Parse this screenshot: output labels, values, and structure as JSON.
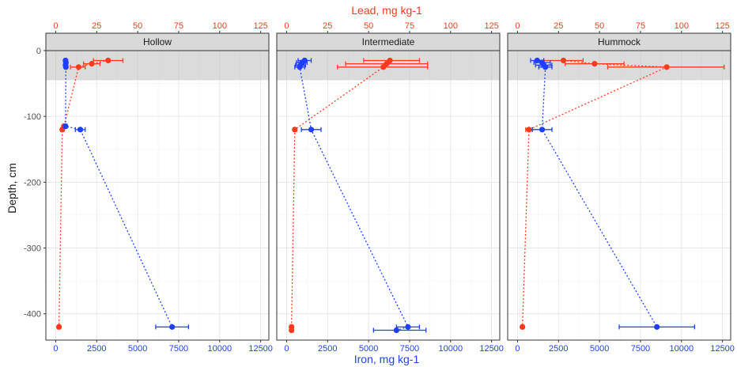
{
  "chart_data": {
    "type": "scatter",
    "y_axis": {
      "label": "Depth, cm",
      "lim": [
        -440,
        0
      ],
      "ticks": [
        0,
        -100,
        -200,
        -300,
        -400
      ],
      "tick_labels": [
        "0",
        "-100",
        "-200",
        "-300",
        "-400"
      ]
    },
    "x_axis_bottom": {
      "label": "Iron, mg kg-1",
      "lim": [
        -600,
        13000
      ],
      "ticks": [
        0,
        2500,
        5000,
        7500,
        10000,
        12500
      ],
      "tick_labels": [
        "0",
        "2500",
        "5000",
        "7500",
        "10000",
        "12500"
      ]
    },
    "x_axis_top": {
      "label": "Lead, mg kg-1",
      "lim": [
        -6,
        130
      ],
      "ticks": [
        0,
        25,
        50,
        75,
        100,
        125
      ],
      "tick_labels": [
        "0",
        "25",
        "50",
        "75",
        "100",
        "125"
      ]
    },
    "shaded_band": {
      "from": 0,
      "to": -45
    },
    "grid": true,
    "colors": {
      "iron": "#1f3fff",
      "lead": "#ff3a1a"
    },
    "panels": [
      {
        "title": "Hollow",
        "iron": [
          {
            "depth": -15,
            "mean": 600,
            "err_low": 550,
            "err_high": 650
          },
          {
            "depth": -18,
            "mean": 620,
            "err_low": 570,
            "err_high": 670
          },
          {
            "depth": -22,
            "mean": 600,
            "err_low": 550,
            "err_high": 650
          },
          {
            "depth": -25,
            "mean": 620,
            "err_low": 570,
            "err_high": 670
          },
          {
            "depth": -115,
            "mean": 600,
            "err_low": 500,
            "err_high": 700
          },
          {
            "depth": -120,
            "mean": 1500,
            "err_low": 1200,
            "err_high": 1800
          },
          {
            "depth": -420,
            "mean": 7100,
            "err_low": 6100,
            "err_high": 8100
          }
        ],
        "lead": [
          {
            "depth": -15,
            "mean": 32,
            "err_low": 23,
            "err_high": 41
          },
          {
            "depth": -20,
            "mean": 22,
            "err_low": 17,
            "err_high": 27
          },
          {
            "depth": -25,
            "mean": 14,
            "err_low": 9,
            "err_high": 18
          },
          {
            "depth": -115,
            "mean": 5,
            "err_low": 4,
            "err_high": 6
          },
          {
            "depth": -120,
            "mean": 4,
            "err_low": 3,
            "err_high": 5
          },
          {
            "depth": -420,
            "mean": 2,
            "err_low": 1,
            "err_high": 3
          }
        ]
      },
      {
        "title": "Intermediate",
        "iron": [
          {
            "depth": -15,
            "mean": 1100,
            "err_low": 700,
            "err_high": 1500
          },
          {
            "depth": -18,
            "mean": 950,
            "err_low": 600,
            "err_high": 1250
          },
          {
            "depth": -22,
            "mean": 850,
            "err_low": 550,
            "err_high": 1150
          },
          {
            "depth": -25,
            "mean": 800,
            "err_low": 500,
            "err_high": 1100
          },
          {
            "depth": -120,
            "mean": 1500,
            "err_low": 900,
            "err_high": 2100
          },
          {
            "depth": -420,
            "mean": 7400,
            "err_low": 6700,
            "err_high": 8100
          },
          {
            "depth": -425,
            "mean": 6700,
            "err_low": 5300,
            "err_high": 8500
          }
        ],
        "lead": [
          {
            "depth": -15,
            "mean": 63,
            "err_low": 47,
            "err_high": 81
          },
          {
            "depth": -20,
            "mean": 61,
            "err_low": 36,
            "err_high": 86
          },
          {
            "depth": -25,
            "mean": 59,
            "err_low": 31,
            "err_high": 86
          },
          {
            "depth": -120,
            "mean": 5,
            "err_low": 4,
            "err_high": 6
          },
          {
            "depth": -420,
            "mean": 3,
            "err_low": 2,
            "err_high": 4
          },
          {
            "depth": -425,
            "mean": 3,
            "err_low": 2,
            "err_high": 4
          }
        ]
      },
      {
        "title": "Hummock",
        "iron": [
          {
            "depth": -15,
            "mean": 1200,
            "err_low": 800,
            "err_high": 1600
          },
          {
            "depth": -18,
            "mean": 1500,
            "err_low": 1000,
            "err_high": 2000
          },
          {
            "depth": -22,
            "mean": 1600,
            "err_low": 1100,
            "err_high": 2100
          },
          {
            "depth": -25,
            "mean": 1700,
            "err_low": 1300,
            "err_high": 2100
          },
          {
            "depth": -120,
            "mean": 1500,
            "err_low": 900,
            "err_high": 2100
          },
          {
            "depth": -420,
            "mean": 8500,
            "err_low": 6200,
            "err_high": 10800
          }
        ],
        "lead": [
          {
            "depth": -15,
            "mean": 28,
            "err_low": 16,
            "err_high": 40
          },
          {
            "depth": -20,
            "mean": 47,
            "err_low": 29,
            "err_high": 65
          },
          {
            "depth": -25,
            "mean": 91,
            "err_low": 55,
            "err_high": 126
          },
          {
            "depth": -120,
            "mean": 7,
            "err_low": 5,
            "err_high": 9
          },
          {
            "depth": -420,
            "mean": 3,
            "err_low": 2,
            "err_high": 4
          }
        ]
      }
    ]
  }
}
